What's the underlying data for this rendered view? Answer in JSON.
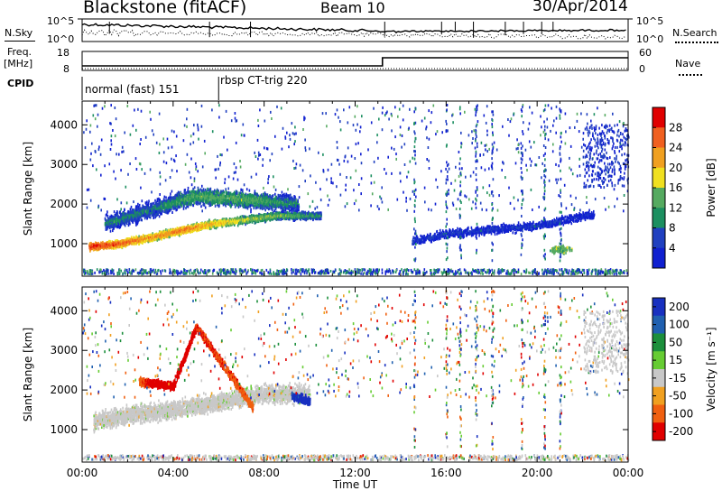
{
  "header": {
    "station": "Blackstone (fitACF)",
    "beam": "Beam 10",
    "date": "30/Apr/2014"
  },
  "strip_labels": {
    "nsky": "N.Sky",
    "nsearch": "N.Search",
    "freq": "Freq.",
    "freq_unit": "[MHz]",
    "nave": "Nave",
    "cpid": "CPID",
    "noise_ticks_left": [
      "10^5",
      "10^0"
    ],
    "noise_ticks_right": [
      "10^5",
      "10^0"
    ],
    "freq_ticks": [
      "18",
      "8"
    ],
    "nave_ticks": [
      "60",
      "0"
    ]
  },
  "cpid_modes": [
    {
      "label": "normal (fast) 151",
      "start_hour": 0
    },
    {
      "label": "rbsp CT-trig 220",
      "start_hour": 6
    }
  ],
  "colors": {
    "power": [
      "#1020d0",
      "#2040c0",
      "#1c8f60",
      "#55aa60",
      "#f0e020",
      "#f0a020",
      "#f06020",
      "#e00000"
    ],
    "velocity": [
      "#1830c0",
      "#2060b0",
      "#1c8f3c",
      "#66cc33",
      "#c8c8c8",
      "#f0a020",
      "#f06010",
      "#e00000"
    ]
  },
  "chart_data": [
    {
      "type": "heatmap",
      "name": "power",
      "xlabel": "",
      "ylabel": "Slant Range [km]",
      "xlim": [
        0,
        24
      ],
      "ylim": [
        180,
        4600
      ],
      "yticks": [
        "1000",
        "2000",
        "3000",
        "4000"
      ],
      "colorbar": {
        "label": "Power [dB]",
        "ticks": [
          "28",
          "24",
          "20",
          "16",
          "12",
          "8",
          "4"
        ],
        "range": [
          0,
          32
        ]
      },
      "features": [
        {
          "desc": "main band",
          "x": [
            0.3,
            1.5,
            3.0,
            4.5,
            5.8,
            7.2,
            8.5,
            10.5
          ],
          "y": [
            920,
            980,
            1150,
            1350,
            1500,
            1600,
            1700,
            1700
          ],
          "power_db": [
            30,
            28,
            24,
            26,
            22,
            18,
            16,
            12
          ]
        },
        {
          "desc": "upper band",
          "x": [
            1,
            3,
            5,
            7.5,
            9.5
          ],
          "y": [
            1500,
            1850,
            2200,
            2100,
            2000
          ],
          "power_db": [
            10,
            10,
            14,
            14,
            10
          ]
        },
        {
          "desc": "evening band",
          "x": [
            14.5,
            16,
            18,
            20,
            22.5
          ],
          "y": [
            1050,
            1250,
            1350,
            1450,
            1750
          ],
          "power_db": [
            6,
            6,
            6,
            6,
            4
          ]
        },
        {
          "desc": "patch",
          "x": [
            21
          ],
          "y": [
            850
          ],
          "power_db": [
            14
          ]
        }
      ]
    },
    {
      "type": "heatmap",
      "name": "velocity",
      "xlabel": "Time UT",
      "ylabel": "Slant Range [km]",
      "xlim": [
        0,
        24
      ],
      "ylim": [
        180,
        4600
      ],
      "xticks": [
        "00:00",
        "04:00",
        "08:00",
        "12:00",
        "16:00",
        "20:00",
        "00:00"
      ],
      "yticks": [
        "1000",
        "2000",
        "3000",
        "4000"
      ],
      "colorbar": {
        "label": "Velocity [m s⁻¹]",
        "ticks": [
          "200",
          "100",
          "50",
          "15",
          "-15",
          "-50",
          "-100",
          "-200"
        ],
        "range": [
          -250,
          250
        ]
      },
      "features": [
        {
          "desc": "ground scatter",
          "x": [
            0.5,
            2,
            4,
            6,
            8,
            10
          ],
          "y": [
            1200,
            1350,
            1500,
            1700,
            1900,
            1900
          ],
          "velocity": [
            0,
            0,
            0,
            0,
            0,
            0
          ]
        },
        {
          "desc": "negative region",
          "x": [
            2.5,
            4.0,
            5.0,
            7.5
          ],
          "y": [
            2200,
            2100,
            3600,
            1550
          ],
          "velocity": [
            -60,
            -150,
            -80,
            -60
          ]
        },
        {
          "desc": "positive region",
          "x": [
            9.2,
            10.0
          ],
          "y": [
            1850,
            1700
          ],
          "velocity": [
            150,
            200
          ]
        }
      ]
    }
  ]
}
